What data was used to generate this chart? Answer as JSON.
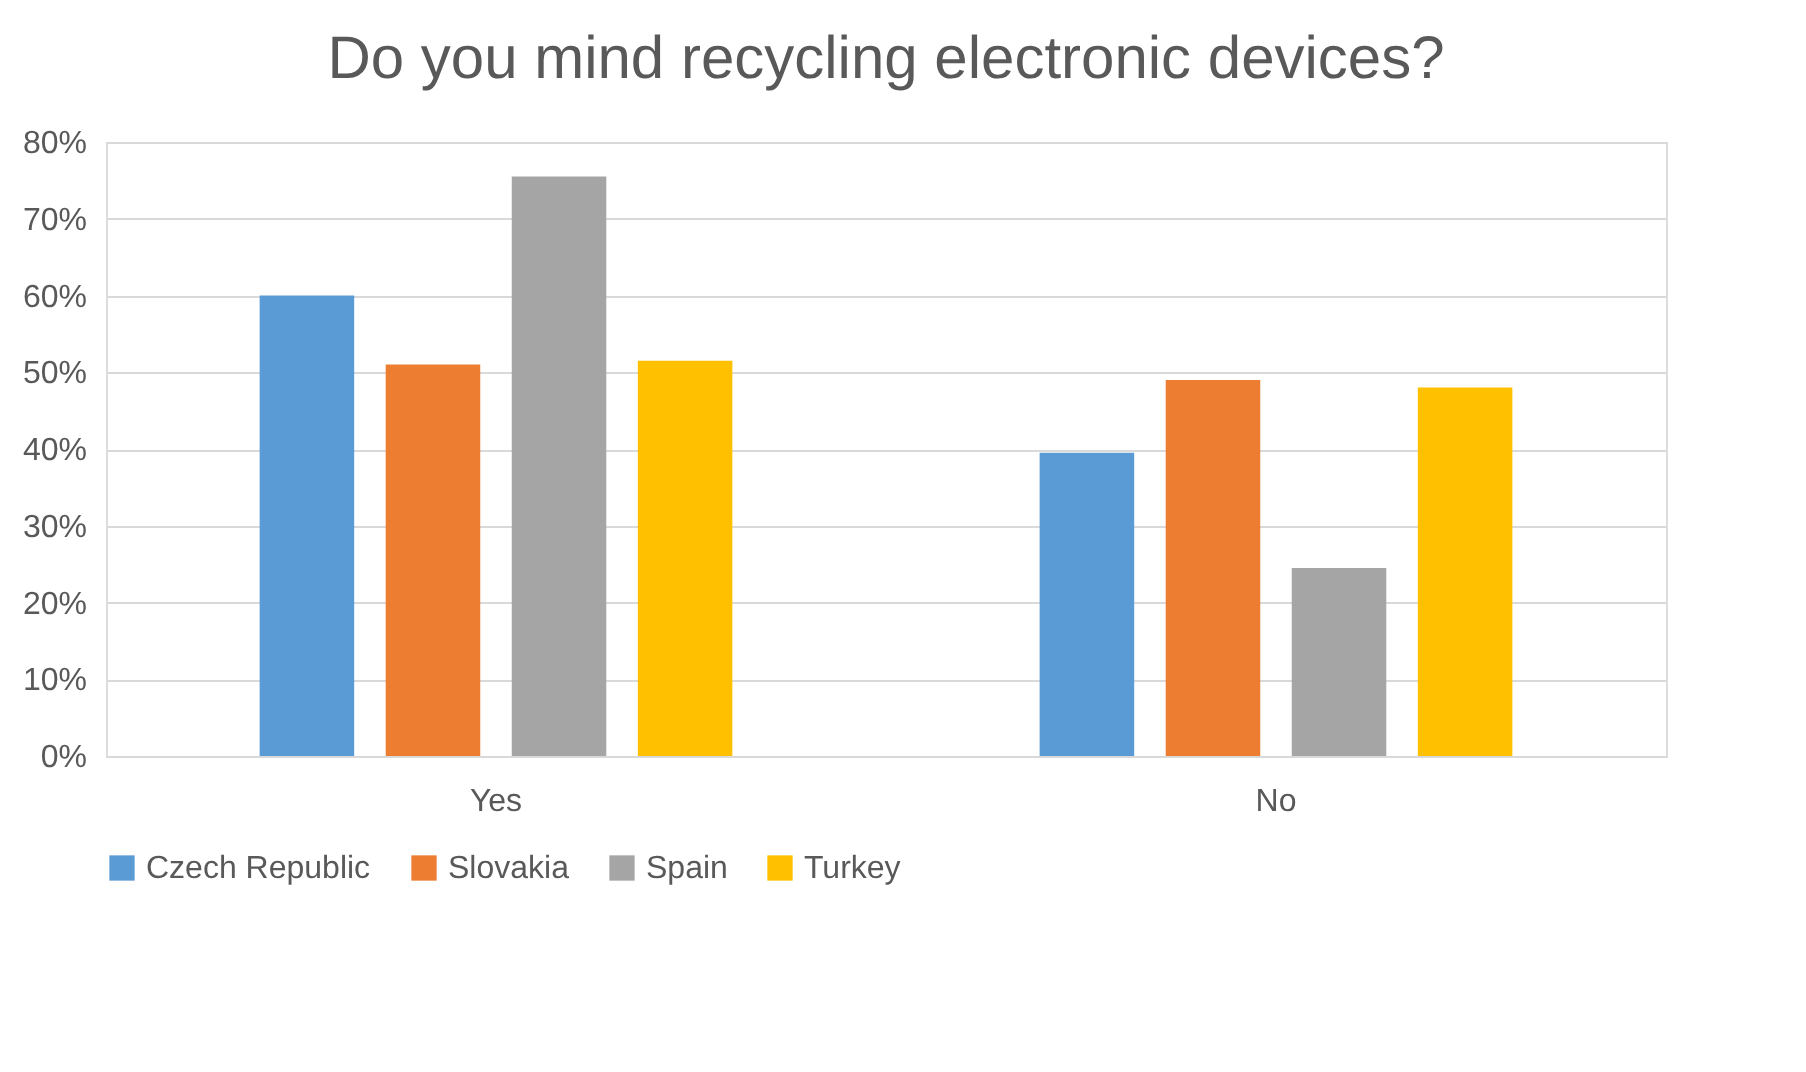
{
  "chart_data": {
    "type": "bar",
    "title": "Do you mind recycling electronic devices?",
    "categories": [
      "Yes",
      "No"
    ],
    "series": [
      {
        "name": "Czech Republic",
        "color": "#5b9bd5",
        "values": [
          60,
          39.5
        ]
      },
      {
        "name": "Slovakia",
        "color": "#ed7d31",
        "values": [
          51,
          49
        ]
      },
      {
        "name": "Spain",
        "color": "#a5a5a5",
        "values": [
          75.5,
          24.5
        ]
      },
      {
        "name": "Turkey",
        "color": "#ffc000",
        "values": [
          51.5,
          48
        ]
      }
    ],
    "ylim": [
      0,
      80
    ],
    "yticks": [
      {
        "value": 0,
        "label": "0%"
      },
      {
        "value": 10,
        "label": "10%"
      },
      {
        "value": 20,
        "label": "20%"
      },
      {
        "value": 30,
        "label": "30%"
      },
      {
        "value": 40,
        "label": "40%"
      },
      {
        "value": 50,
        "label": "50%"
      },
      {
        "value": 60,
        "label": "60%"
      },
      {
        "value": 70,
        "label": "70%"
      },
      {
        "value": 80,
        "label": "80%"
      }
    ],
    "grid": "y",
    "legend": "bottom"
  }
}
